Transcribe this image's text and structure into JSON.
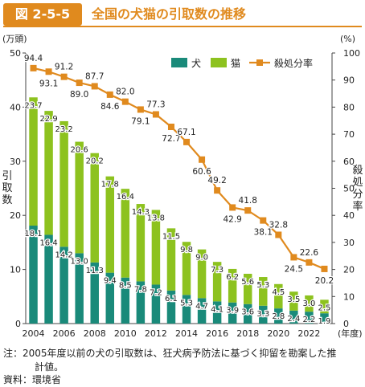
{
  "header": {
    "badge": "図 2-5-5",
    "title": "全国の犬猫の引取数の推移"
  },
  "notes": {
    "line1": "注：2005年度以前の犬の引取数は、狂犬病予防法に基づく抑留を勘案した推",
    "line2": "計値。",
    "source": "資料：環境省"
  },
  "colors": {
    "accent": "#e08a1e",
    "dog": "#1a8a7a",
    "cat": "#8dc21f",
    "rate": "#e08a1e"
  },
  "chart_data": {
    "type": "bar",
    "stacked": true,
    "x": [
      2004,
      2005,
      2006,
      2007,
      2008,
      2009,
      2010,
      2011,
      2012,
      2013,
      2014,
      2015,
      2016,
      2017,
      2018,
      2019,
      2020,
      2021,
      2022,
      2023
    ],
    "xticks": [
      "2004",
      "2006",
      "2008",
      "2010",
      "2012",
      "2014",
      "2016",
      "2018",
      "2020",
      "2022"
    ],
    "x_unit": "(年度)",
    "series": [
      {
        "name": "犬",
        "type": "bar",
        "axis": "left",
        "values": [
          18.1,
          16.4,
          14.2,
          13.0,
          11.3,
          9.4,
          8.5,
          7.8,
          7.2,
          6.1,
          5.3,
          4.7,
          4.1,
          3.9,
          3.6,
          3.3,
          2.8,
          2.4,
          2.2,
          1.9
        ]
      },
      {
        "name": "猫",
        "type": "bar",
        "axis": "left",
        "values": [
          23.7,
          22.9,
          23.2,
          20.6,
          20.2,
          17.8,
          16.4,
          14.3,
          13.8,
          11.5,
          9.8,
          9.0,
          7.3,
          6.2,
          5.6,
          5.3,
          4.5,
          3.5,
          3.0,
          2.5
        ]
      },
      {
        "name": "殺処分率",
        "type": "line",
        "axis": "right",
        "values": [
          94.4,
          93.1,
          91.2,
          89.0,
          87.7,
          84.6,
          82.0,
          79.1,
          77.3,
          72.7,
          67.1,
          60.6,
          49.2,
          42.9,
          41.8,
          38.1,
          32.8,
          24.5,
          22.6,
          20.2
        ]
      }
    ],
    "y_left": {
      "label": "引取数",
      "unit": "(万頭)",
      "lim": [
        0,
        50
      ],
      "ticks": [
        0,
        10,
        20,
        30,
        40,
        50
      ]
    },
    "y_right": {
      "label": "殺処分率",
      "unit": "(%)",
      "lim": [
        0,
        100
      ],
      "ticks": [
        0,
        10,
        20,
        30,
        40,
        50,
        60,
        70,
        80,
        90,
        100
      ]
    },
    "legend_position": "top-right",
    "grid": false
  }
}
